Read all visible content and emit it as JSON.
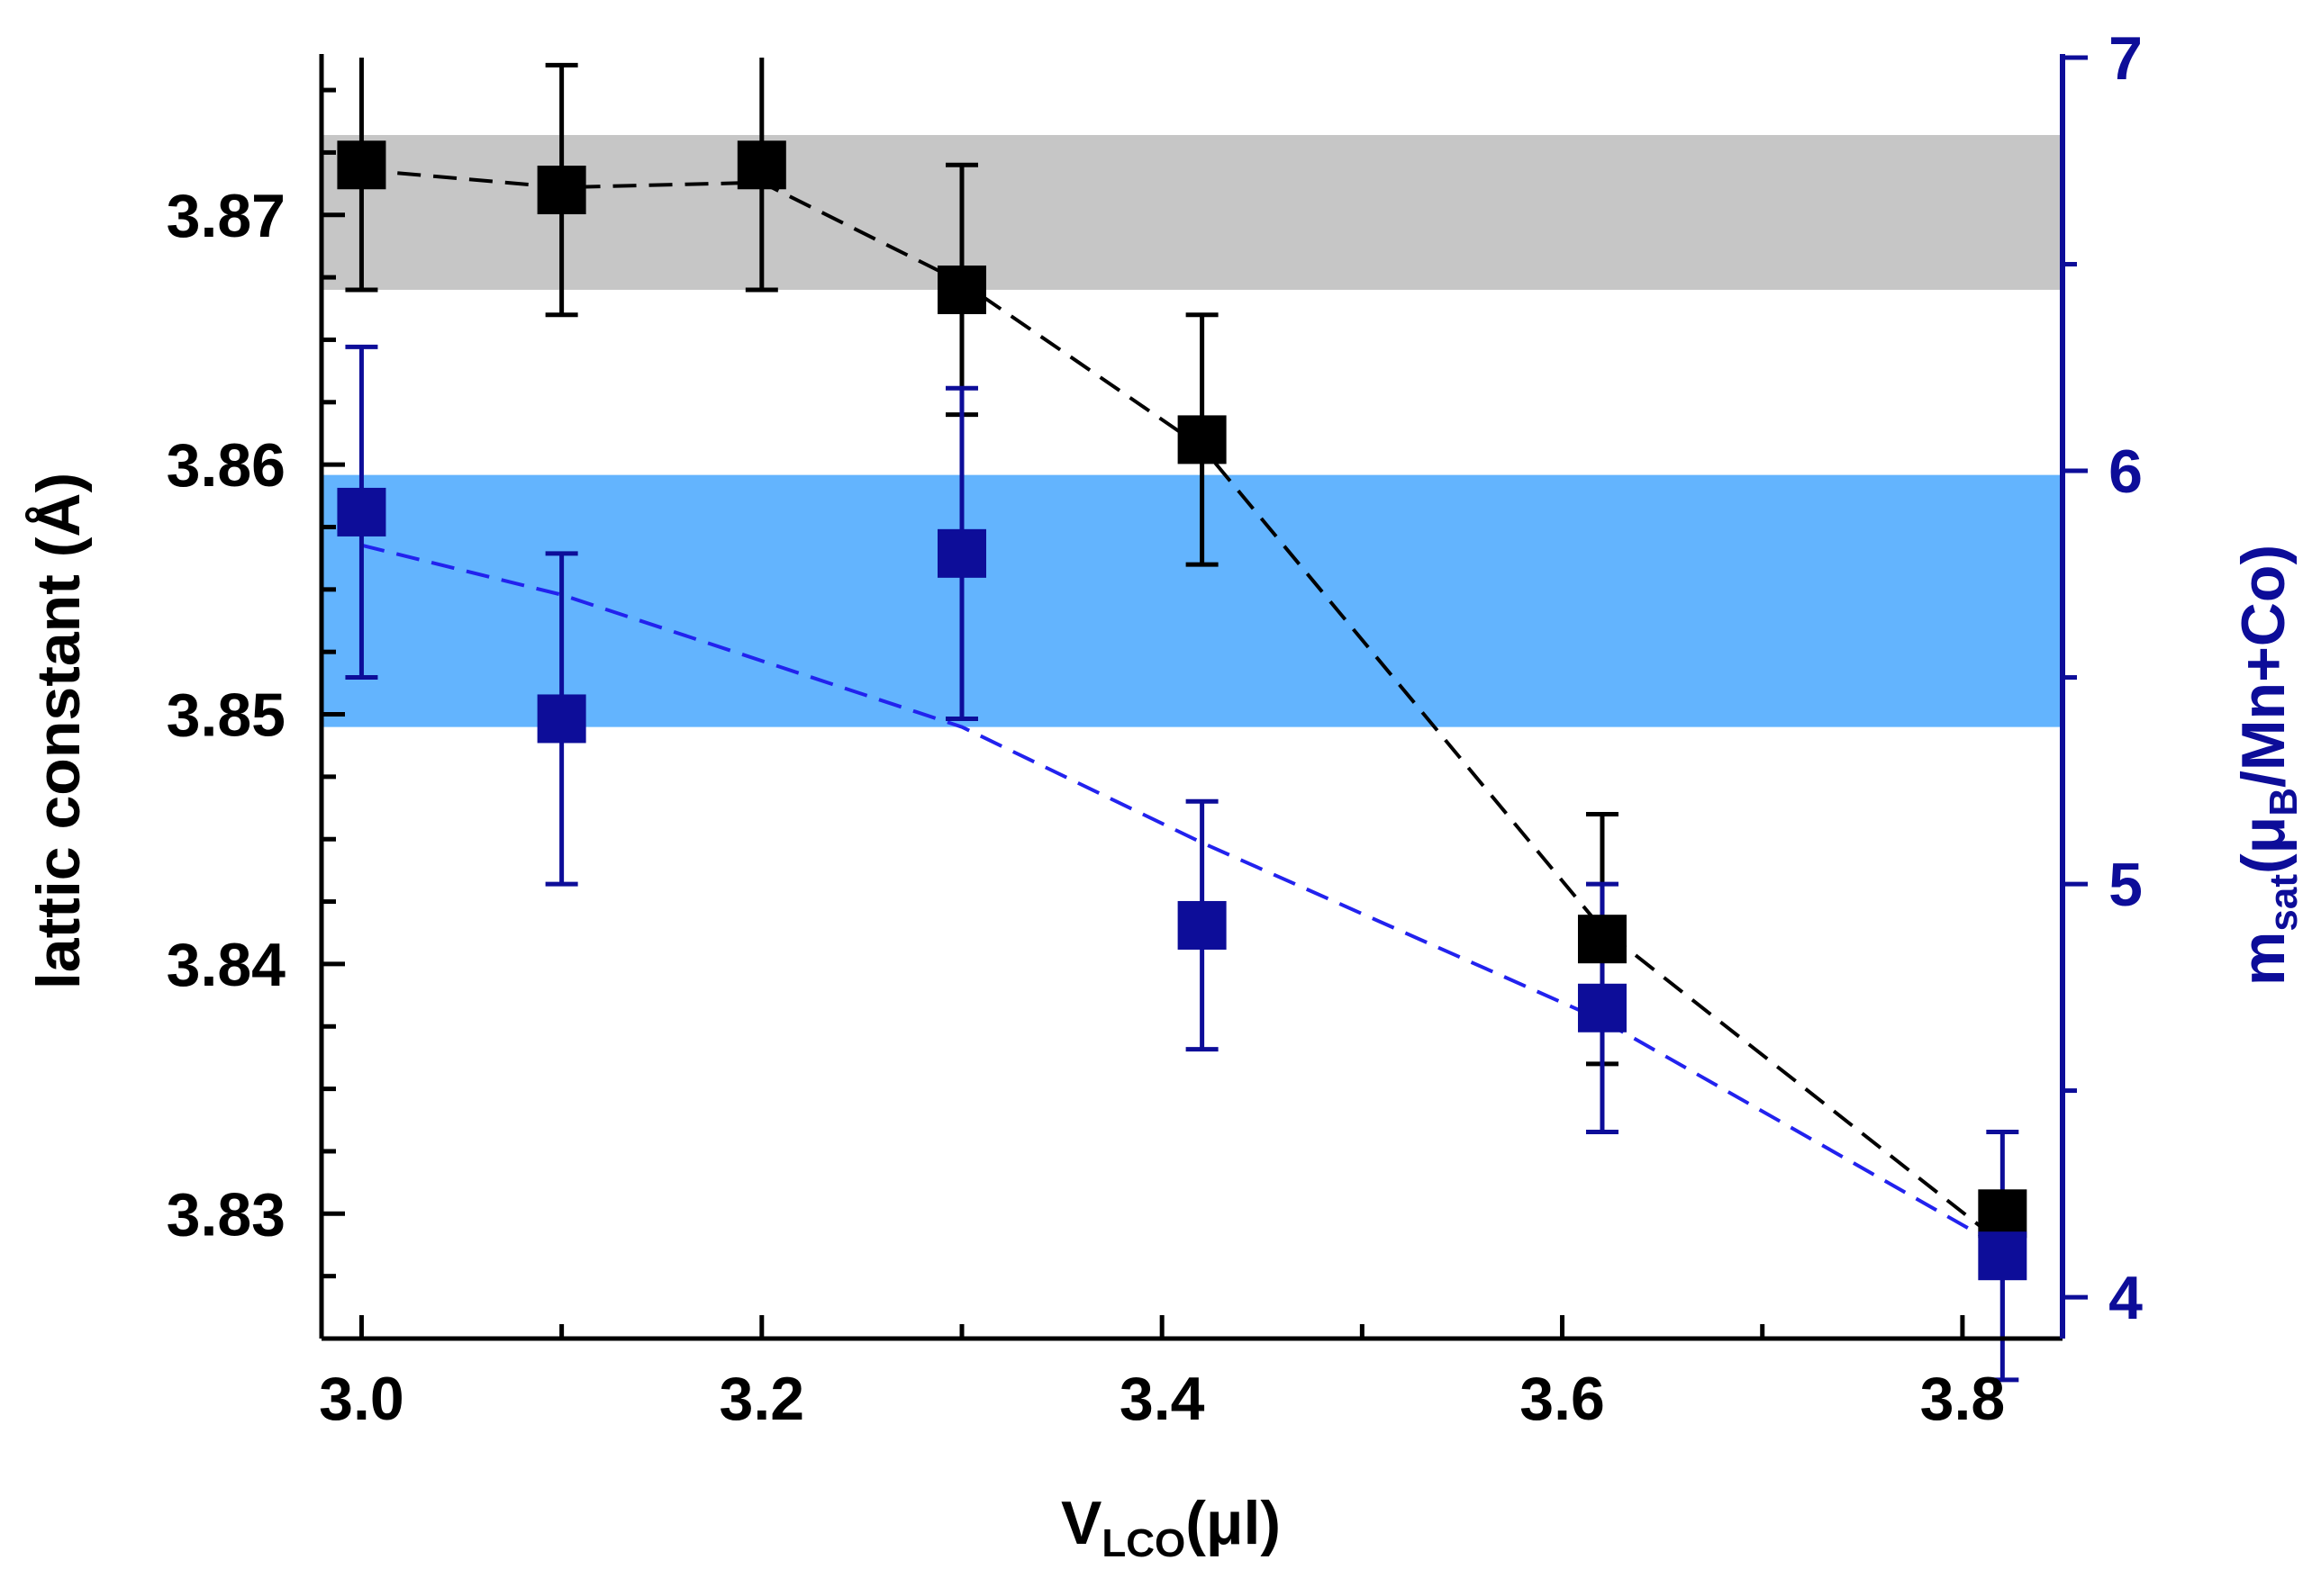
{
  "chart_data": {
    "type": "scatter",
    "title": "",
    "xlabel": {
      "main": "V",
      "sub": "LCO",
      "unit": "(μl)"
    },
    "ylabel_left": "lattic constant (Å)",
    "ylabel_right": {
      "main": "m",
      "sub": "sat",
      "paren_open": "(μ",
      "sub2": "B",
      "rest": "/Mn+Co)"
    },
    "xlim": [
      2.98,
      3.85
    ],
    "ylim_left": [
      3.825,
      3.8763
    ],
    "ylim_right": [
      3.9,
      7.0
    ],
    "x_ticks": [
      "3.0",
      "3.2",
      "3.4",
      "3.6",
      "3.8"
    ],
    "x_tick_values": [
      3.0,
      3.2,
      3.4,
      3.6,
      3.8
    ],
    "y_left_ticks": [
      "3.83",
      "3.84",
      "3.85",
      "3.86",
      "3.87"
    ],
    "y_left_tick_values": [
      3.83,
      3.84,
      3.85,
      3.86,
      3.87
    ],
    "y_right_ticks": [
      "4",
      "5",
      "6",
      "7"
    ],
    "y_right_tick_values": [
      4,
      5,
      6,
      7
    ],
    "bands": [
      {
        "name": "lattice-band",
        "axis": "left",
        "y0": 3.867,
        "y1": 3.8732,
        "color": "#c6c6c6"
      },
      {
        "name": "moment-band",
        "axis": "right",
        "y0": 5.38,
        "y1": 5.99,
        "color": "#63b4fe"
      }
    ],
    "series": [
      {
        "name": "lattice constant",
        "axis": "left",
        "color": "#000000",
        "x": [
          3.0,
          3.1,
          3.2,
          3.3,
          3.42,
          3.62,
          3.82
        ],
        "y": [
          3.872,
          3.871,
          3.872,
          3.867,
          3.861,
          3.841,
          3.83
        ],
        "err": [
          0.005,
          0.005,
          0.005,
          0.005,
          0.005,
          0.005,
          0
        ],
        "trend": [
          3.8718,
          3.8711,
          3.8713,
          3.8673,
          3.8607,
          3.8414,
          3.8288
        ]
      },
      {
        "name": "m_sat",
        "axis": "right",
        "color": "#0d0d99",
        "trend_color": "#2222ee",
        "x": [
          3.0,
          3.1,
          3.2,
          3.3,
          3.42,
          3.62,
          3.82
        ],
        "y": [
          5.9,
          5.4,
          null,
          5.8,
          4.9,
          4.7,
          4.1
        ],
        "err": [
          0.4,
          0.4,
          null,
          0.4,
          0.3,
          0.3,
          0.3
        ],
        "trend_x": [
          3.0,
          3.1,
          3.3,
          3.42,
          3.62,
          3.82
        ],
        "trend": [
          5.82,
          5.7,
          5.38,
          5.1,
          4.67,
          4.12
        ]
      }
    ]
  }
}
